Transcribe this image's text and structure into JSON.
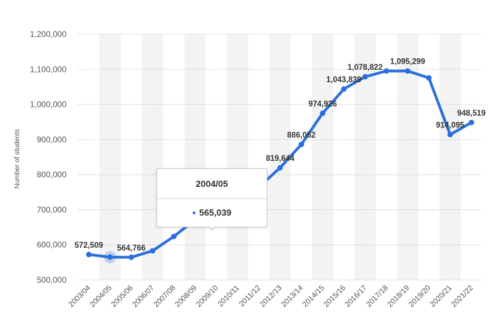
{
  "chart_data": {
    "type": "line",
    "title": "",
    "xlabel": "",
    "ylabel": "Number of students",
    "ylim": [
      500000,
      1200000
    ],
    "y_ticks": [
      500000,
      600000,
      700000,
      800000,
      900000,
      1000000,
      1100000,
      1200000
    ],
    "y_tick_labels": [
      "500,000",
      "600,000",
      "700,000",
      "800,000",
      "900,000",
      "1,000,000",
      "1,100,000",
      "1,200,000"
    ],
    "grid": true,
    "categories": [
      "2003/04",
      "2004/05",
      "2005/06",
      "2006/07",
      "2007/08",
      "2008/09",
      "2009/10",
      "2010/11",
      "2011/12",
      "2012/13",
      "2013/14",
      "2014/15",
      "2015/16",
      "2016/17",
      "2017/18",
      "2018/19",
      "2019/20",
      "2020/21",
      "2021/22"
    ],
    "series": [
      {
        "values": [
          572509,
          565039,
          564766,
          582984,
          623805,
          671616,
          690923,
          723277,
          764495,
          819644,
          886052,
          974926,
          1043839,
          1078822,
          1095299,
          1095299,
          1075496,
          914095,
          948519
        ]
      }
    ],
    "data_labels": [
      {
        "index": 0,
        "text": "572,509"
      },
      {
        "index": 2,
        "text": "564,766"
      },
      {
        "index": 9,
        "text": "819,644"
      },
      {
        "index": 10,
        "text": "886,052"
      },
      {
        "index": 11,
        "text": "974,926"
      },
      {
        "index": 12,
        "text": "1,043,839"
      },
      {
        "index": 13,
        "text": "1,078,822"
      },
      {
        "index": 15,
        "text": "1,095,299"
      },
      {
        "index": 17,
        "text": "914,095"
      },
      {
        "index": 18,
        "text": "948,519"
      }
    ],
    "line_color": "#2a6fdb",
    "band_color": "#f3f3f3",
    "highlight_index": 1
  },
  "tooltip": {
    "title": "2004/05",
    "value": "565,039"
  }
}
